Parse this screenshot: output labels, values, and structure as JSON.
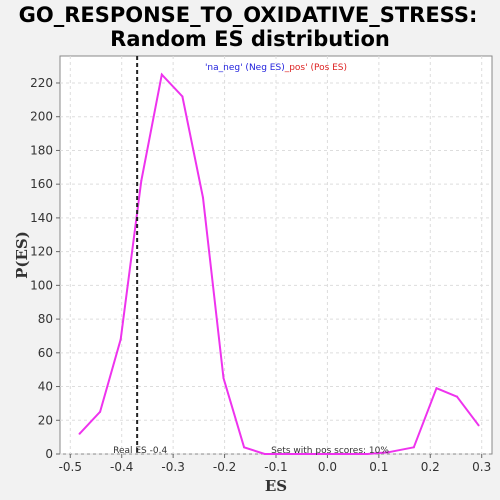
{
  "chart_data": {
    "type": "line",
    "title_line1": "GO_RESPONSE_TO_OXIDATIVE_STRESS:",
    "title_line2": "Random ES distribution",
    "xlabel": "ES",
    "ylabel": "P(ES)",
    "xlim": [
      -0.52,
      0.32
    ],
    "ylim": [
      0,
      236
    ],
    "x_ticks": [
      -0.5,
      -0.4,
      -0.3,
      -0.2,
      -0.1,
      0.0,
      0.1,
      0.2,
      0.3
    ],
    "x_tick_labels": [
      "-0.5",
      "-0.4",
      "-0.3",
      "-0.2",
      "-0.1",
      "0.0",
      "0.1",
      "0.2",
      "0.3"
    ],
    "y_ticks": [
      0,
      20,
      40,
      60,
      80,
      100,
      120,
      140,
      160,
      180,
      200,
      220
    ],
    "y_tick_labels": [
      "0",
      "20",
      "40",
      "60",
      "80",
      "100",
      "120",
      "140",
      "160",
      "180",
      "200",
      "220"
    ],
    "grid": true,
    "series": [
      {
        "color": "#ee33ee",
        "x": [
          -0.482,
          -0.442,
          -0.402,
          -0.362,
          -0.322,
          -0.282,
          -0.242,
          -0.202,
          -0.162,
          -0.122,
          -0.082,
          -0.042,
          -0.002,
          0.038,
          0.078,
          0.118,
          0.168,
          0.212,
          0.252,
          0.294
        ],
        "y": [
          12,
          25,
          68,
          162,
          225,
          212,
          152,
          45,
          4,
          0,
          0,
          0,
          0,
          0,
          0,
          1,
          4,
          39,
          34,
          17
        ]
      }
    ],
    "real_es": {
      "x": -0.37,
      "label": "Real ES -0.4"
    },
    "annotation_pos_scores": "Sets with pos scores: 10%",
    "legend": {
      "neg_label": "'na_neg' (Neg ES)",
      "neg_color": "#2222dd",
      "pos_label": "_pos' (Pos ES)",
      "pos_color": "#dd2222"
    }
  }
}
